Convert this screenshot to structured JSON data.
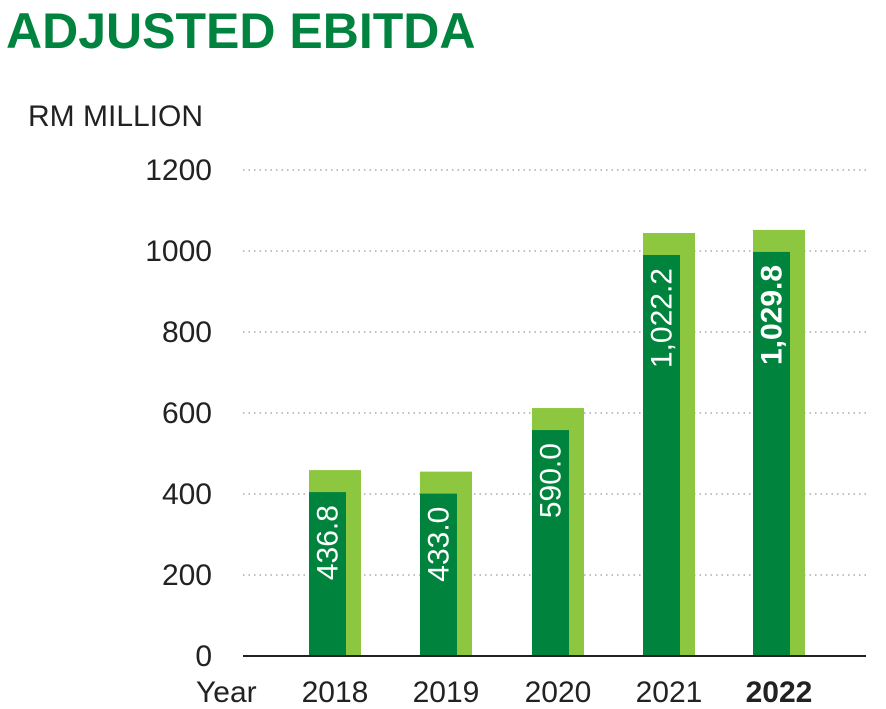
{
  "colors": {
    "title": "#00833e",
    "bar_dark": "#00843d",
    "bar_light": "#8dc63f",
    "axis": "#222222",
    "grid": "#aaaaaa",
    "text": "#222222",
    "label_text": "#ffffff"
  },
  "chart_data": {
    "type": "bar",
    "title": "ADJUSTED EBITDA",
    "ylabel": "RM MILLION",
    "xlabel": "Year",
    "categories": [
      "2018",
      "2019",
      "2020",
      "2021",
      "2022"
    ],
    "values": [
      436.8,
      433.0,
      590.0,
      1022.2,
      1029.8
    ],
    "value_labels": [
      "436.8",
      "433.0",
      "590.0",
      "1,022.2",
      "1,029.8"
    ],
    "highlight": "2022",
    "ylim": [
      0,
      1200
    ],
    "yticks": [
      "0",
      "200",
      "400",
      "600",
      "800",
      "1000",
      "1200"
    ],
    "grid": true,
    "legend": "none"
  }
}
